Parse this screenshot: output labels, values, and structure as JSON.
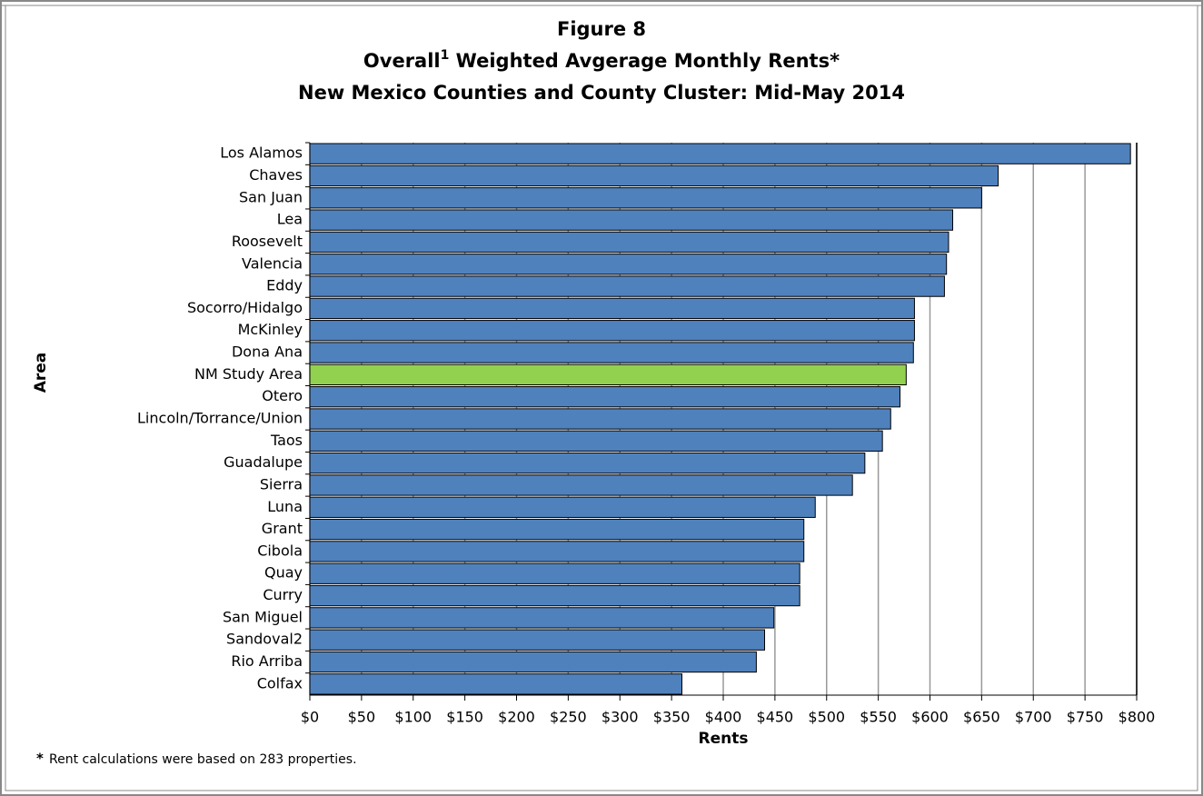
{
  "chart_data": {
    "type": "barh",
    "title": "Figure 8",
    "subtitle_parts": [
      "Overall",
      "1",
      " Weighted Avgerage Monthly Rents*"
    ],
    "subtitle2": "New Mexico Counties and County Cluster: Mid-May 2014",
    "y_label": "Area",
    "x_label": "Rents",
    "categories": [
      "Los Alamos",
      "Chaves",
      "San Juan",
      "Lea",
      "Roosevelt",
      "Valencia",
      "Eddy",
      "Socorro/Hidalgo",
      "McKinley",
      "Dona Ana",
      "NM Study Area",
      "Otero",
      "Lincoln/Torrance/Union",
      "Taos",
      "Guadalupe",
      "Sierra",
      "Luna",
      "Grant",
      "Cibola",
      "Quay",
      "Curry",
      "San Miguel",
      "Sandoval2",
      "Rio Arriba",
      "Colfax"
    ],
    "values": [
      794,
      666,
      650,
      622,
      618,
      616,
      614,
      585,
      585,
      584,
      577,
      571,
      562,
      554,
      537,
      525,
      489,
      478,
      478,
      474,
      474,
      449,
      440,
      432,
      360
    ],
    "colors": [
      "#4f81bd",
      "#4f81bd",
      "#4f81bd",
      "#4f81bd",
      "#4f81bd",
      "#4f81bd",
      "#4f81bd",
      "#4f81bd",
      "#4f81bd",
      "#4f81bd",
      "#92d050",
      "#4f81bd",
      "#4f81bd",
      "#4f81bd",
      "#4f81bd",
      "#4f81bd",
      "#4f81bd",
      "#4f81bd",
      "#4f81bd",
      "#4f81bd",
      "#4f81bd",
      "#4f81bd",
      "#4f81bd",
      "#4f81bd",
      "#4f81bd"
    ],
    "xlim": [
      0,
      800
    ],
    "xticks": [
      {
        "value": 0,
        "label": "$0"
      },
      {
        "value": 50,
        "label": "$50"
      },
      {
        "value": 100,
        "label": "$100"
      },
      {
        "value": 150,
        "label": "$150"
      },
      {
        "value": 200,
        "label": "$200"
      },
      {
        "value": 250,
        "label": "$250"
      },
      {
        "value": 300,
        "label": "$300"
      },
      {
        "value": 350,
        "label": "$350"
      },
      {
        "value": 400,
        "label": "$400"
      },
      {
        "value": 450,
        "label": "$450"
      },
      {
        "value": 500,
        "label": "$500"
      },
      {
        "value": 550,
        "label": "$550"
      },
      {
        "value": 600,
        "label": "$600"
      },
      {
        "value": 650,
        "label": "$650"
      },
      {
        "value": 700,
        "label": "$700"
      },
      {
        "value": 750,
        "label": "$750"
      },
      {
        "value": 800,
        "label": "$800"
      }
    ],
    "grid": true,
    "note_marker": "*",
    "note": "Rent calculations were based on 283 properties."
  }
}
